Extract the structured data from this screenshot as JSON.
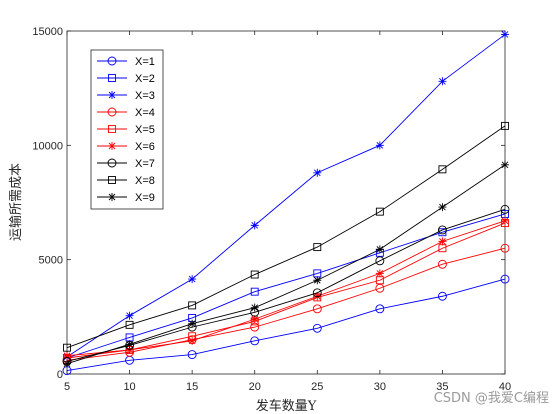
{
  "watermark": "CSDN @我爱C编程",
  "chart_data": {
    "type": "line",
    "xlabel": "发车数量Y",
    "ylabel": "运输所需成本",
    "x": [
      5,
      10,
      15,
      20,
      25,
      30,
      35,
      40
    ],
    "xlim": [
      5,
      40
    ],
    "ylim": [
      0,
      15000
    ],
    "xticks": [
      "5",
      "10",
      "15",
      "20",
      "25",
      "30",
      "35",
      "40"
    ],
    "yticks": [
      "0",
      "5000",
      "10000",
      "15000"
    ],
    "legend_position": "top-left",
    "series": [
      {
        "name": "X=1",
        "color": "#0000ff",
        "marker": "circle",
        "values": [
          150,
          600,
          850,
          1450,
          2000,
          2850,
          3400,
          4150
        ]
      },
      {
        "name": "X=2",
        "color": "#0000ff",
        "marker": "square",
        "values": [
          700,
          1600,
          2450,
          3600,
          4400,
          5300,
          6200,
          7000
        ]
      },
      {
        "name": "X=3",
        "color": "#0000ff",
        "marker": "star",
        "values": [
          750,
          2550,
          4150,
          6500,
          8800,
          10000,
          12800,
          14850
        ]
      },
      {
        "name": "X=4",
        "color": "#ff0000",
        "marker": "circle",
        "values": [
          600,
          950,
          1500,
          2050,
          2850,
          3750,
          4800,
          5500
        ]
      },
      {
        "name": "X=5",
        "color": "#ff0000",
        "marker": "square",
        "values": [
          700,
          1050,
          1650,
          2300,
          3350,
          4100,
          5500,
          6600
        ]
      },
      {
        "name": "X=6",
        "color": "#ff0000",
        "marker": "star",
        "values": [
          800,
          1050,
          1450,
          2400,
          3400,
          4400,
          5800,
          6700
        ]
      },
      {
        "name": "X=7",
        "color": "#000000",
        "marker": "circle",
        "values": [
          550,
          1250,
          2050,
          2700,
          3550,
          4950,
          6300,
          7200
        ]
      },
      {
        "name": "X=8",
        "color": "#000000",
        "marker": "square",
        "values": [
          1150,
          2150,
          3000,
          4350,
          5550,
          7100,
          8950,
          10850
        ]
      },
      {
        "name": "X=9",
        "color": "#000000",
        "marker": "star",
        "values": [
          450,
          1300,
          2200,
          2900,
          4100,
          5450,
          7300,
          9150
        ]
      }
    ]
  }
}
